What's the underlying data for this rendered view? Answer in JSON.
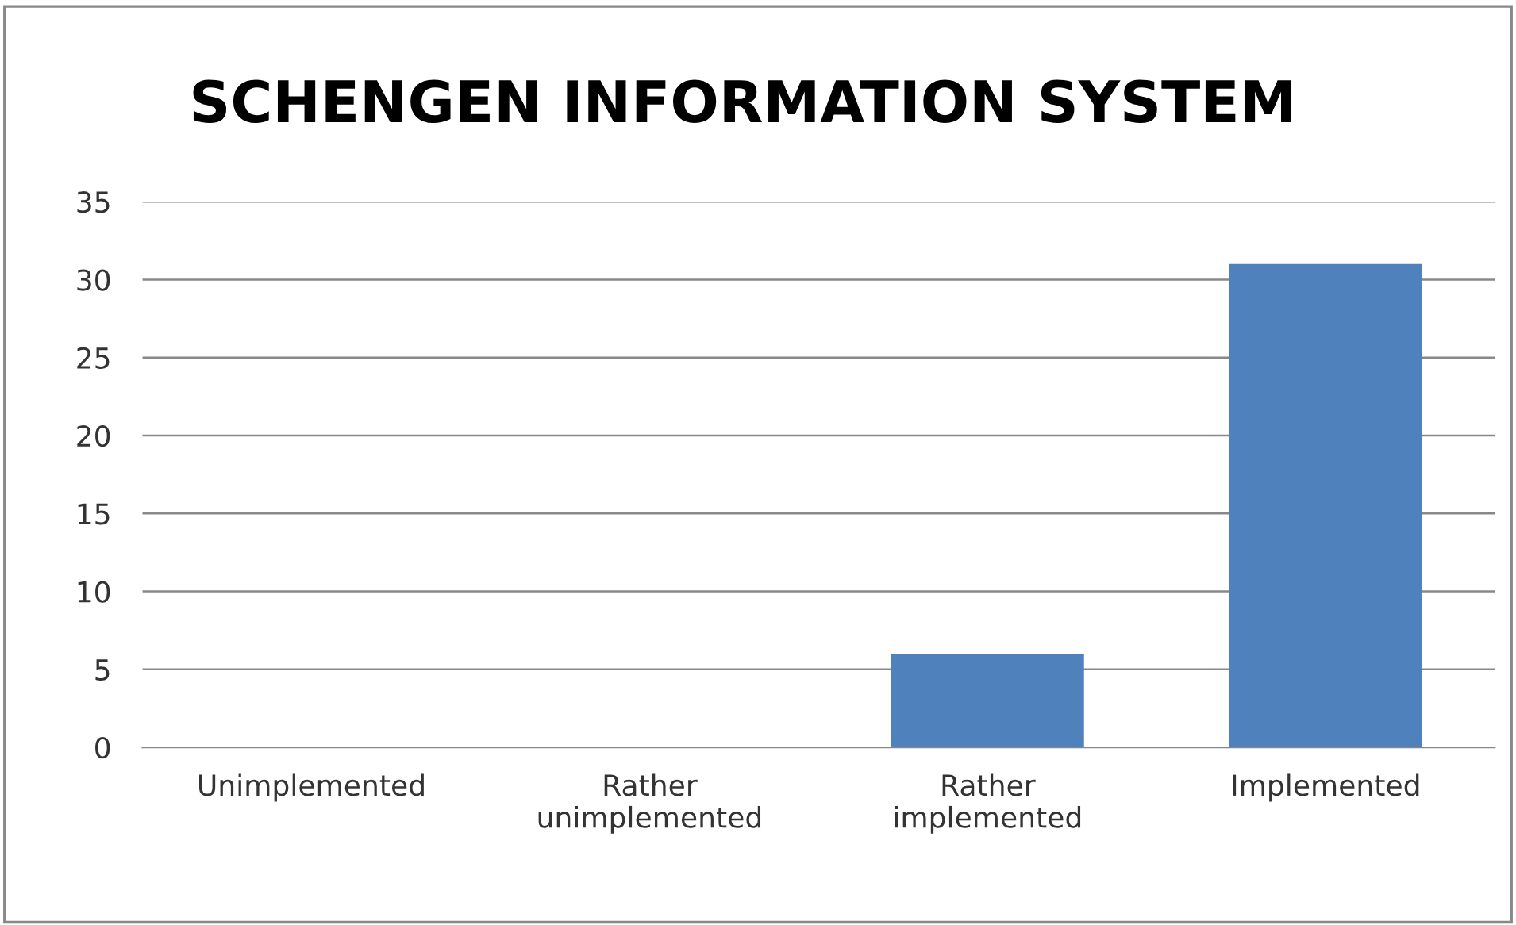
{
  "chart_data": {
    "type": "bar",
    "title": "SCHENGEN INFORMATION SYSTEM",
    "categories": [
      "Unimplemented",
      "Rather unimplemented",
      "Rather implemented",
      "Implemented"
    ],
    "values": [
      0,
      0,
      6,
      31
    ],
    "color": "#4f81bd",
    "ylim": [
      0,
      35
    ],
    "yticks": [
      0,
      5,
      10,
      15,
      20,
      25,
      30,
      35
    ],
    "grid": "y",
    "legend": false
  }
}
